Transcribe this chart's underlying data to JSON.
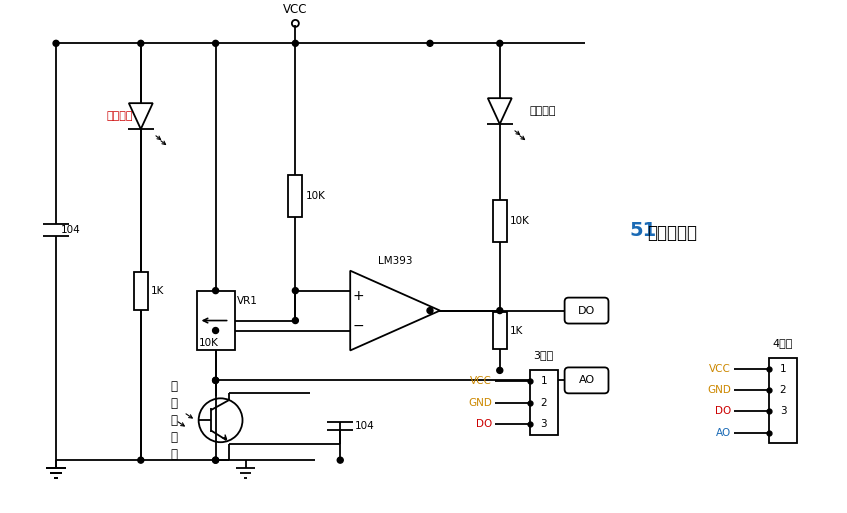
{
  "bg_color": "#ffffff",
  "line_color": "#000000",
  "vcc_label": "VCC",
  "forum_color_51": "#1a6ab5",
  "power_label": "电源指示",
  "power_label_color": "#cc0000",
  "switch_label": "开关指示",
  "ir_label_lines": [
    "红",
    "外",
    "接",
    "收",
    "管"
  ],
  "lm393_label": "LM393",
  "vr1_label": "VR1",
  "r1k_label": "1K",
  "r10k_label": "10K",
  "r10k2_label": "10K",
  "r1k2_label": "1K",
  "c104_label": "104",
  "c104b_label": "104",
  "do_label": "DO",
  "ao_label": "AO",
  "three_wire": "3线制",
  "four_wire": "4线制",
  "conn3_labels": [
    "VCC",
    "GND",
    "DO"
  ],
  "conn4_labels": [
    "VCC",
    "GND",
    "DO",
    "AO"
  ],
  "vcc_color": "#cc8800",
  "gnd_color": "#cc8800",
  "do_color": "#cc0000",
  "ao_color": "#1a6ab5"
}
